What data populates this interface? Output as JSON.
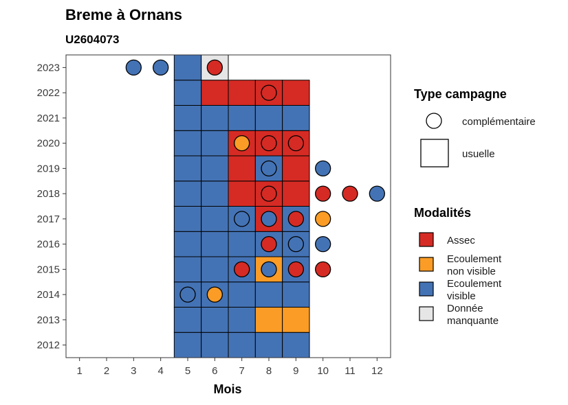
{
  "chart_data": {
    "type": "heatmap",
    "title": "Breme à Ornans",
    "subtitle": "U2604073",
    "xlabel": "Mois",
    "ylabel": "",
    "x_ticks": [
      1,
      2,
      3,
      4,
      5,
      6,
      7,
      8,
      9,
      10,
      11,
      12
    ],
    "y_ticks": [
      2012,
      2013,
      2014,
      2015,
      2016,
      2017,
      2018,
      2019,
      2020,
      2021,
      2022,
      2023
    ],
    "xlim": [
      0.5,
      12.5
    ],
    "ylim": [
      2011.5,
      2023.5
    ],
    "categories": {
      "Assec": "#d52b24",
      "Ecoulement non visible": "#fa9c26",
      "Ecoulement visible": "#4473b5",
      "Donnée manquante": "#e6e6e6"
    },
    "usuelle": [
      {
        "year": 2012,
        "month": 5,
        "modalite": "Ecoulement visible"
      },
      {
        "year": 2012,
        "month": 6,
        "modalite": "Ecoulement visible"
      },
      {
        "year": 2012,
        "month": 7,
        "modalite": "Ecoulement visible"
      },
      {
        "year": 2012,
        "month": 8,
        "modalite": "Ecoulement visible"
      },
      {
        "year": 2012,
        "month": 9,
        "modalite": "Ecoulement visible"
      },
      {
        "year": 2013,
        "month": 5,
        "modalite": "Ecoulement visible"
      },
      {
        "year": 2013,
        "month": 6,
        "modalite": "Ecoulement visible"
      },
      {
        "year": 2013,
        "month": 7,
        "modalite": "Ecoulement visible"
      },
      {
        "year": 2013,
        "month": 8,
        "modalite": "Ecoulement non visible"
      },
      {
        "year": 2013,
        "month": 9,
        "modalite": "Ecoulement non visible"
      },
      {
        "year": 2014,
        "month": 5,
        "modalite": "Ecoulement visible"
      },
      {
        "year": 2014,
        "month": 6,
        "modalite": "Ecoulement visible"
      },
      {
        "year": 2014,
        "month": 7,
        "modalite": "Ecoulement visible"
      },
      {
        "year": 2014,
        "month": 8,
        "modalite": "Ecoulement visible"
      },
      {
        "year": 2014,
        "month": 9,
        "modalite": "Ecoulement visible"
      },
      {
        "year": 2015,
        "month": 5,
        "modalite": "Ecoulement visible"
      },
      {
        "year": 2015,
        "month": 6,
        "modalite": "Ecoulement visible"
      },
      {
        "year": 2015,
        "month": 7,
        "modalite": "Ecoulement visible"
      },
      {
        "year": 2015,
        "month": 8,
        "modalite": "Ecoulement non visible"
      },
      {
        "year": 2015,
        "month": 9,
        "modalite": "Ecoulement visible"
      },
      {
        "year": 2016,
        "month": 5,
        "modalite": "Ecoulement visible"
      },
      {
        "year": 2016,
        "month": 6,
        "modalite": "Ecoulement visible"
      },
      {
        "year": 2016,
        "month": 7,
        "modalite": "Ecoulement visible"
      },
      {
        "year": 2016,
        "month": 8,
        "modalite": "Ecoulement visible"
      },
      {
        "year": 2016,
        "month": 9,
        "modalite": "Ecoulement visible"
      },
      {
        "year": 2017,
        "month": 5,
        "modalite": "Ecoulement visible"
      },
      {
        "year": 2017,
        "month": 6,
        "modalite": "Ecoulement visible"
      },
      {
        "year": 2017,
        "month": 7,
        "modalite": "Ecoulement visible"
      },
      {
        "year": 2017,
        "month": 8,
        "modalite": "Assec"
      },
      {
        "year": 2017,
        "month": 9,
        "modalite": "Ecoulement visible"
      },
      {
        "year": 2018,
        "month": 5,
        "modalite": "Ecoulement visible"
      },
      {
        "year": 2018,
        "month": 6,
        "modalite": "Ecoulement visible"
      },
      {
        "year": 2018,
        "month": 7,
        "modalite": "Assec"
      },
      {
        "year": 2018,
        "month": 8,
        "modalite": "Assec"
      },
      {
        "year": 2018,
        "month": 9,
        "modalite": "Assec"
      },
      {
        "year": 2019,
        "month": 5,
        "modalite": "Ecoulement visible"
      },
      {
        "year": 2019,
        "month": 6,
        "modalite": "Ecoulement visible"
      },
      {
        "year": 2019,
        "month": 7,
        "modalite": "Assec"
      },
      {
        "year": 2019,
        "month": 8,
        "modalite": "Ecoulement visible"
      },
      {
        "year": 2019,
        "month": 9,
        "modalite": "Assec"
      },
      {
        "year": 2020,
        "month": 5,
        "modalite": "Ecoulement visible"
      },
      {
        "year": 2020,
        "month": 6,
        "modalite": "Ecoulement visible"
      },
      {
        "year": 2020,
        "month": 7,
        "modalite": "Assec"
      },
      {
        "year": 2020,
        "month": 8,
        "modalite": "Assec"
      },
      {
        "year": 2020,
        "month": 9,
        "modalite": "Assec"
      },
      {
        "year": 2021,
        "month": 5,
        "modalite": "Ecoulement visible"
      },
      {
        "year": 2021,
        "month": 6,
        "modalite": "Ecoulement visible"
      },
      {
        "year": 2021,
        "month": 7,
        "modalite": "Ecoulement visible"
      },
      {
        "year": 2021,
        "month": 8,
        "modalite": "Ecoulement visible"
      },
      {
        "year": 2021,
        "month": 9,
        "modalite": "Ecoulement visible"
      },
      {
        "year": 2022,
        "month": 5,
        "modalite": "Ecoulement visible"
      },
      {
        "year": 2022,
        "month": 6,
        "modalite": "Assec"
      },
      {
        "year": 2022,
        "month": 7,
        "modalite": "Assec"
      },
      {
        "year": 2022,
        "month": 8,
        "modalite": "Assec"
      },
      {
        "year": 2022,
        "month": 9,
        "modalite": "Assec"
      },
      {
        "year": 2023,
        "month": 5,
        "modalite": "Ecoulement visible"
      },
      {
        "year": 2023,
        "month": 6,
        "modalite": "Donnée manquante"
      }
    ],
    "complementaire": [
      {
        "year": 2014,
        "month": 5,
        "modalite": "Ecoulement visible"
      },
      {
        "year": 2014,
        "month": 6,
        "modalite": "Ecoulement non visible"
      },
      {
        "year": 2015,
        "month": 7,
        "modalite": "Assec"
      },
      {
        "year": 2015,
        "month": 8,
        "modalite": "Ecoulement visible"
      },
      {
        "year": 2015,
        "month": 9,
        "modalite": "Assec"
      },
      {
        "year": 2015,
        "month": 10,
        "modalite": "Assec"
      },
      {
        "year": 2016,
        "month": 8,
        "modalite": "Assec"
      },
      {
        "year": 2016,
        "month": 9,
        "modalite": "Ecoulement visible"
      },
      {
        "year": 2016,
        "month": 10,
        "modalite": "Ecoulement visible"
      },
      {
        "year": 2017,
        "month": 7,
        "modalite": "Ecoulement visible"
      },
      {
        "year": 2017,
        "month": 8,
        "modalite": "Ecoulement visible"
      },
      {
        "year": 2017,
        "month": 9,
        "modalite": "Assec"
      },
      {
        "year": 2017,
        "month": 10,
        "modalite": "Ecoulement non visible"
      },
      {
        "year": 2018,
        "month": 8,
        "modalite": "Assec"
      },
      {
        "year": 2018,
        "month": 10,
        "modalite": "Assec"
      },
      {
        "year": 2018,
        "month": 11,
        "modalite": "Assec"
      },
      {
        "year": 2018,
        "month": 12,
        "modalite": "Ecoulement visible"
      },
      {
        "year": 2019,
        "month": 8,
        "modalite": "Ecoulement visible"
      },
      {
        "year": 2019,
        "month": 10,
        "modalite": "Ecoulement visible"
      },
      {
        "year": 2020,
        "month": 7,
        "modalite": "Ecoulement non visible"
      },
      {
        "year": 2020,
        "month": 8,
        "modalite": "Assec"
      },
      {
        "year": 2020,
        "month": 9,
        "modalite": "Assec"
      },
      {
        "year": 2022,
        "month": 8,
        "modalite": "Assec"
      },
      {
        "year": 2023,
        "month": 3,
        "modalite": "Ecoulement visible"
      },
      {
        "year": 2023,
        "month": 4,
        "modalite": "Ecoulement visible"
      },
      {
        "year": 2023,
        "month": 6,
        "modalite": "Assec"
      }
    ],
    "legend": {
      "position": "right",
      "type_title": "Type campagne",
      "type_items": [
        {
          "label": "complémentaire",
          "shape": "circle"
        },
        {
          "label": "usuelle",
          "shape": "square"
        }
      ],
      "modalites_title": "Modalités",
      "modalite_items": [
        {
          "label_lines": [
            "Assec"
          ],
          "color": "#d52b24"
        },
        {
          "label_lines": [
            "Ecoulement",
            "non visible"
          ],
          "color": "#fa9c26"
        },
        {
          "label_lines": [
            "Ecoulement",
            "visible"
          ],
          "color": "#4473b5"
        },
        {
          "label_lines": [
            "Donnée",
            "manquante"
          ],
          "color": "#e6e6e6"
        }
      ]
    },
    "grid": false
  }
}
